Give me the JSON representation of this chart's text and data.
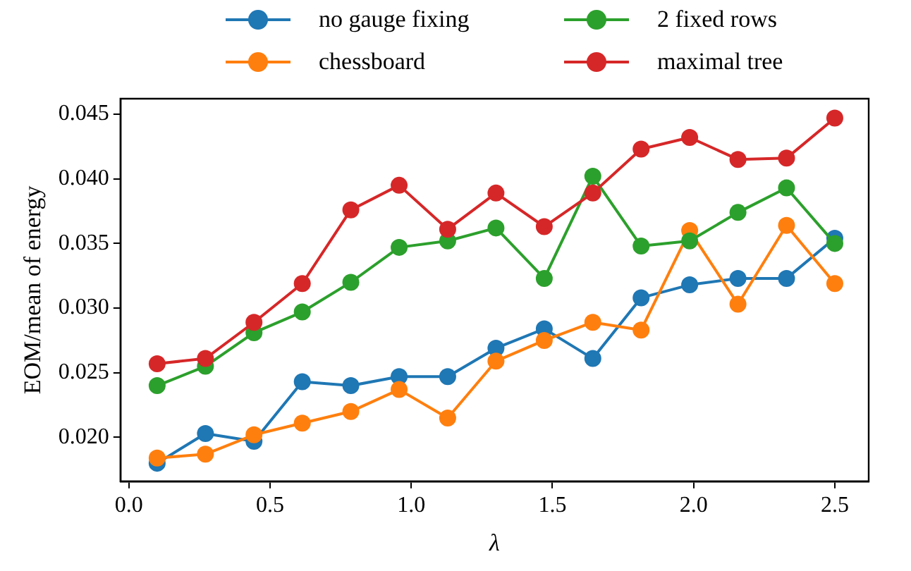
{
  "chart_data": {
    "type": "line",
    "xlabel": "λ",
    "ylabel": "EOM/mean of energy",
    "x": [
      0.1,
      0.271,
      0.443,
      0.614,
      0.786,
      0.957,
      1.129,
      1.3,
      1.471,
      1.643,
      1.814,
      1.986,
      2.157,
      2.329,
      2.5
    ],
    "series": [
      {
        "name": "no gauge fixing",
        "color": "#1f77b4",
        "values": [
          0.018,
          0.0203,
          0.0197,
          0.0243,
          0.024,
          0.0247,
          0.0247,
          0.0269,
          0.0284,
          0.0261,
          0.0308,
          0.0318,
          0.0323,
          0.0323,
          0.0354
        ]
      },
      {
        "name": "chessboard",
        "color": "#ff7f0e",
        "values": [
          0.0184,
          0.0187,
          0.0202,
          0.0211,
          0.022,
          0.0237,
          0.0215,
          0.0259,
          0.0275,
          0.0289,
          0.0283,
          0.036,
          0.0303,
          0.0364,
          0.0319
        ]
      },
      {
        "name": "2 fixed rows",
        "color": "#2ca02c",
        "values": [
          0.024,
          0.0255,
          0.0281,
          0.0297,
          0.032,
          0.0347,
          0.0352,
          0.0362,
          0.0323,
          0.0402,
          0.0348,
          0.0352,
          0.0374,
          0.0393,
          0.035
        ]
      },
      {
        "name": "maximal tree",
        "color": "#d62728",
        "values": [
          0.0257,
          0.0261,
          0.0289,
          0.0319,
          0.0376,
          0.0395,
          0.0361,
          0.0389,
          0.0363,
          0.0389,
          0.0423,
          0.0432,
          0.0415,
          0.0416,
          0.0447
        ]
      }
    ],
    "xlim": [
      -0.03,
      2.62
    ],
    "ylim": [
      0.0166,
      0.0462
    ],
    "xticks": [
      {
        "value": 0,
        "label": "0.0"
      },
      {
        "value": 0.5,
        "label": "0.5"
      },
      {
        "value": 1,
        "label": "1.0"
      },
      {
        "value": 1.5,
        "label": "1.5"
      },
      {
        "value": 2,
        "label": "2.0"
      },
      {
        "value": 2.5,
        "label": "2.5"
      }
    ],
    "yticks": [
      {
        "value": 0.02,
        "label": "0.020"
      },
      {
        "value": 0.025,
        "label": "0.025"
      },
      {
        "value": 0.03,
        "label": "0.030"
      },
      {
        "value": 0.035,
        "label": "0.035"
      },
      {
        "value": 0.04,
        "label": "0.040"
      },
      {
        "value": 0.045,
        "label": "0.045"
      }
    ],
    "grid": false,
    "legend": "top",
    "marker": "circle",
    "line_style": "solid"
  }
}
